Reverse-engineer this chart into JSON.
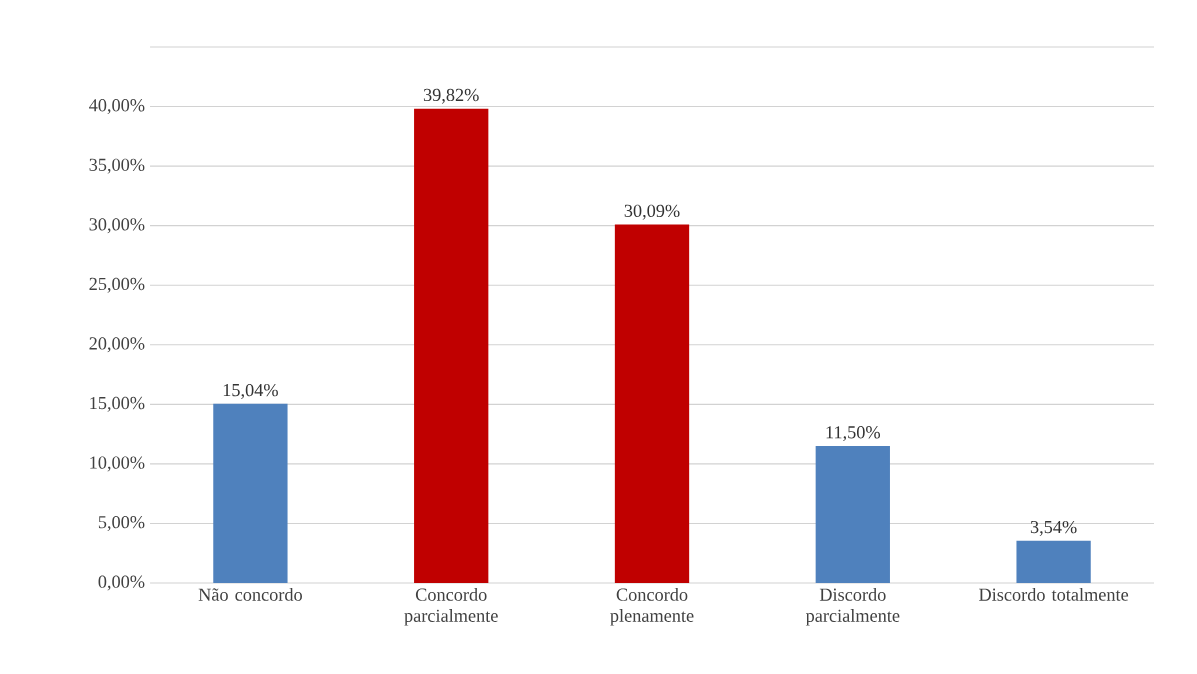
{
  "chart_data": {
    "type": "bar",
    "categories": [
      "Não concordo",
      "Concordo parcialmente",
      "Concordo plenamente",
      "Discordo parcialmente",
      "Discordo totalmente"
    ],
    "values": [
      15.04,
      39.82,
      30.09,
      11.5,
      3.54
    ],
    "value_labels": [
      "15,04%",
      "39,82%",
      "30,09%",
      "11,50%",
      "3,54%"
    ],
    "colors": [
      "#4f81bd",
      "#c00000",
      "#c00000",
      "#4f81bd",
      "#4f81bd"
    ],
    "ylim": [
      0,
      45
    ],
    "yticks": [
      {
        "value": 0,
        "label": "0,00%"
      },
      {
        "value": 5,
        "label": "5,00%"
      },
      {
        "value": 10,
        "label": "10,00%"
      },
      {
        "value": 15,
        "label": "15,00%"
      },
      {
        "value": 20,
        "label": "20,00%"
      },
      {
        "value": 25,
        "label": "25,00%"
      },
      {
        "value": 30,
        "label": "30,00%"
      },
      {
        "value": 35,
        "label": "35,00%"
      },
      {
        "value": 40,
        "label": "40,00%"
      },
      {
        "value": 45,
        "label": null
      }
    ],
    "grid": "y"
  }
}
